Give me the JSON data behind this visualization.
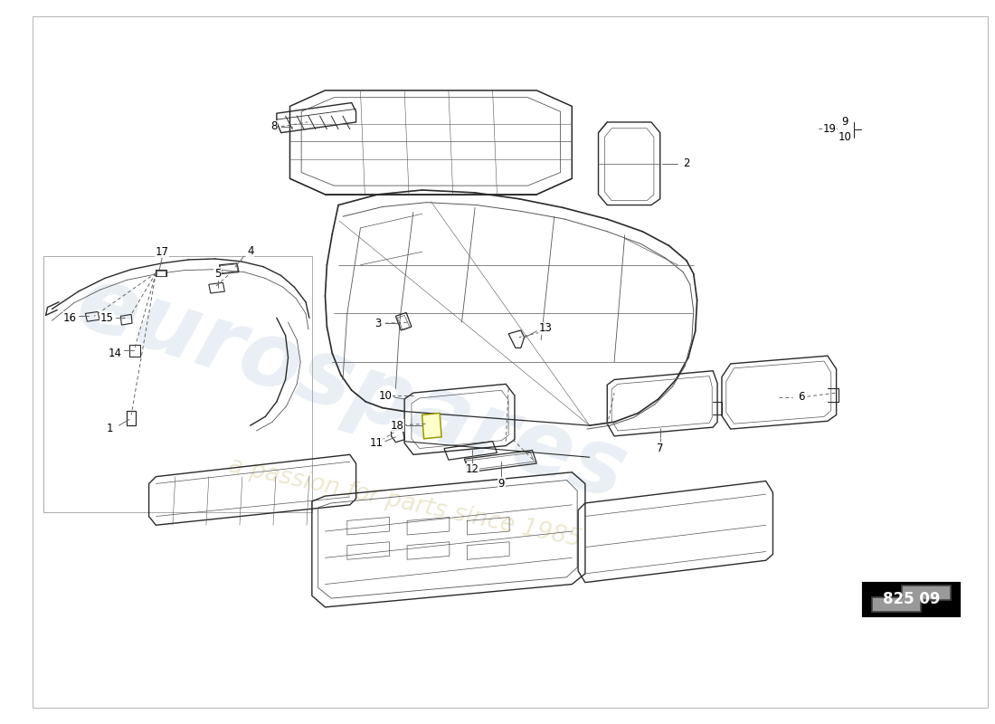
{
  "bg_color": "#ffffff",
  "watermark_text1": "eurospares",
  "watermark_text2": "a passion for parts since 1985",
  "part_number": "825 09",
  "line_color": "#2a2a2a",
  "light_line": "#555555",
  "dash_color": "#666666",
  "wm_color1": "#c5d5e5",
  "wm_color2": "#d4c890",
  "wm_alpha1": 0.38,
  "wm_alpha2": 0.42
}
